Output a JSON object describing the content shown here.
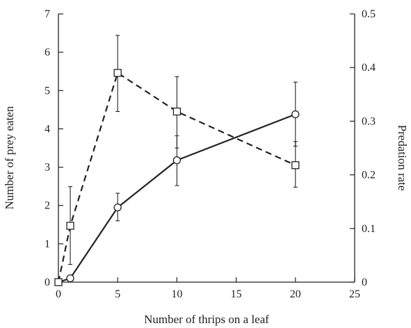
{
  "chart_data": {
    "type": "line",
    "xlabel": "Number of thrips on a leaf",
    "ylabel": "Number of prey eaten",
    "ylabel_right": "Predation rate",
    "xlim": [
      0,
      25
    ],
    "xticks": [
      0,
      5,
      10,
      15,
      20,
      25
    ],
    "ylim": [
      0,
      7
    ],
    "yticks": [
      0,
      1,
      2,
      3,
      4,
      5,
      6,
      7
    ],
    "ylim_right": [
      0,
      0.5
    ],
    "yticks_right": [
      "0",
      "0.1",
      "0.2",
      "0.3",
      "0.4",
      "0.5"
    ],
    "grid": false,
    "series": [
      {
        "axis": "left",
        "style": "solid",
        "marker": "circle",
        "color": "#222222",
        "x": [
          0,
          1,
          5,
          10,
          20
        ],
        "y": [
          0,
          0.1,
          1.95,
          3.18,
          4.38
        ],
        "err_low": [
          0,
          0,
          1.6,
          2.52,
          3.55
        ],
        "err_high": [
          0,
          0,
          2.32,
          3.82,
          5.22
        ]
      },
      {
        "axis": "right",
        "style": "dashed",
        "marker": "square",
        "color": "#222222",
        "x": [
          0,
          1,
          5,
          10,
          20
        ],
        "y": [
          0,
          0.105,
          0.39,
          0.318,
          0.218
        ],
        "err_low": [
          0,
          0.033,
          0.318,
          0.25,
          0.177
        ],
        "err_high": [
          0,
          0.178,
          0.46,
          0.383,
          0.262
        ]
      }
    ]
  }
}
